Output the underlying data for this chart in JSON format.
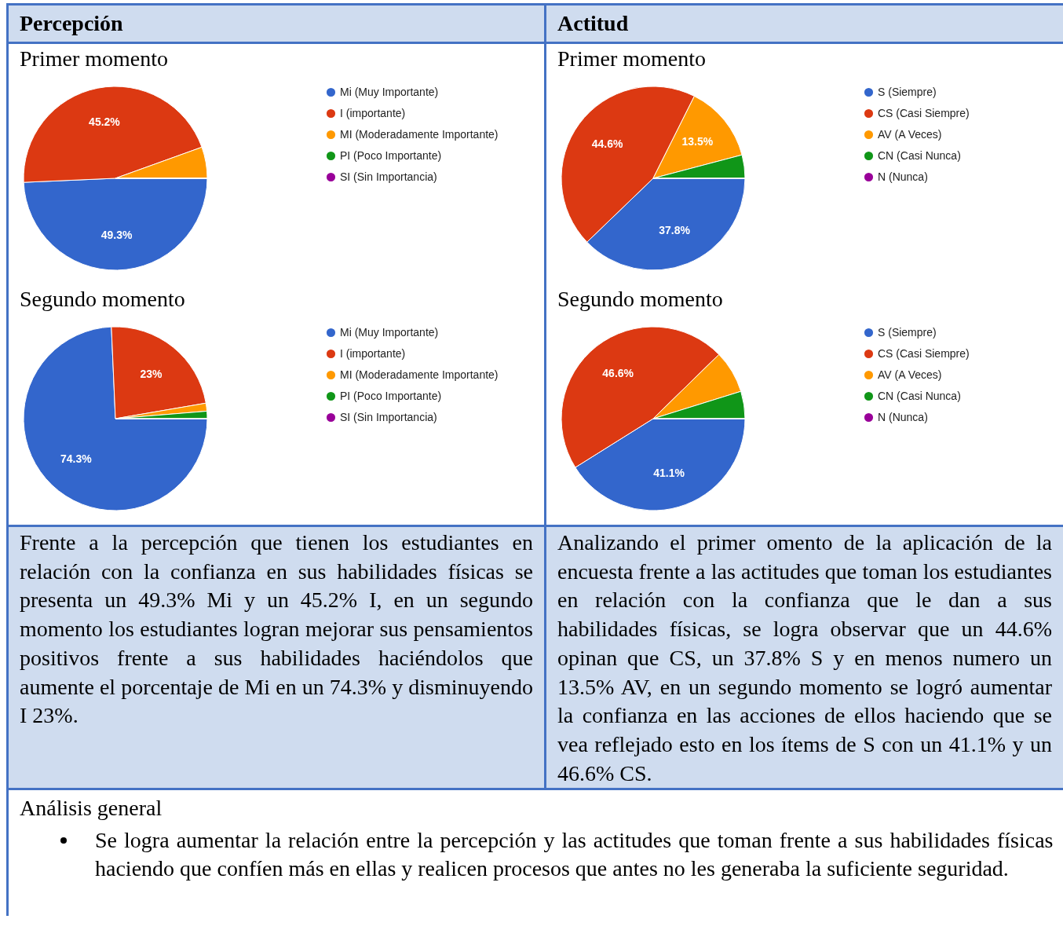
{
  "chart_data": [
    {
      "type": "other",
      "title": "Percepción"
    },
    {
      "type": "other",
      "title": "Actitud"
    },
    {
      "type": "pie",
      "title": "Primer momento",
      "categories": [
        "Mi (Muy Importante)",
        "I (importante)",
        "MI (Moderadamente Importante)",
        "PI (Poco Importante)",
        "SI (Sin Importancia)"
      ],
      "values": [
        49.3,
        45.2,
        5.5,
        0,
        0
      ],
      "colors": [
        "#3366cc",
        "#dc3912",
        "#ff9900",
        "#109618",
        "#990099"
      ],
      "value_labels": [
        "49.3%",
        "45.2%",
        null,
        null,
        null
      ],
      "legend": "right"
    },
    {
      "type": "pie",
      "title": "Primer momento",
      "categories": [
        "S (Siempre)",
        "CS (Casi Siempre)",
        "AV (A Veces)",
        "CN (Casi Nunca)",
        "N (Nunca)"
      ],
      "values": [
        37.8,
        44.6,
        13.5,
        4.1,
        0
      ],
      "colors": [
        "#3366cc",
        "#dc3912",
        "#ff9900",
        "#109618",
        "#990099"
      ],
      "value_labels": [
        "37.8%",
        "44.6%",
        "13.5%",
        null,
        null
      ],
      "legend": "right"
    },
    {
      "type": "pie",
      "title": "Segundo momento",
      "categories": [
        "Mi (Muy Importante)",
        "I (importante)",
        "MI (Moderadamente Importante)",
        "PI (Poco Importante)",
        "SI (Sin Importancia)"
      ],
      "values": [
        74.3,
        23,
        1.4,
        1.3,
        0
      ],
      "colors": [
        "#3366cc",
        "#dc3912",
        "#ff9900",
        "#109618",
        "#990099"
      ],
      "value_labels": [
        "74.3%",
        "23%",
        null,
        null,
        null
      ],
      "legend": "right"
    },
    {
      "type": "pie",
      "title": "Segundo momento",
      "categories": [
        "S (Siempre)",
        "CS (Casi Siempre)",
        "AV (A Veces)",
        "CN (Casi Nunca)",
        "N (Nunca)"
      ],
      "values": [
        41.1,
        46.6,
        7.5,
        4.8,
        0
      ],
      "colors": [
        "#3366cc",
        "#dc3912",
        "#ff9900",
        "#109618",
        "#990099"
      ],
      "value_labels": [
        "41.1%",
        "46.6%",
        null,
        null,
        null
      ],
      "legend": "right"
    },
    {
      "type": "other",
      "annotations": [
        "Frente a la percepción que tienen los estudiantes en relación con la confianza en sus habilidades físicas se presenta un 49.3% Mi y un 45.2% I, en un segundo momento los estudiantes logran mejorar sus pensamientos positivos frente a sus habilidades haciéndolos que aumente el porcentaje de Mi en un 74.3% y disminuyendo I 23%."
      ]
    },
    {
      "type": "other",
      "annotations": [
        "Analizando el primer omento de la aplicación de la encuesta frente a las actitudes que toman los estudiantes en relación con la confianza que le dan a sus habilidades físicas, se logra observar que un 44.6% opinan que CS, un 37.8% S y en menos numero un 13.5% AV, en un segundo momento se logró aumentar la confianza en las acciones de ellos haciendo que se vea reflejado esto en los ítems de S con un 41.1% y un 46.6% CS."
      ]
    },
    {
      "type": "other",
      "title": "Análisis general",
      "annotations": [
        "Se logra aumentar la relación entre la percepción y las actitudes que toman frente a sus habilidades físicas haciendo que confíen más en ellas y realicen procesos que antes no les generaba la suficiente seguridad."
      ]
    }
  ]
}
